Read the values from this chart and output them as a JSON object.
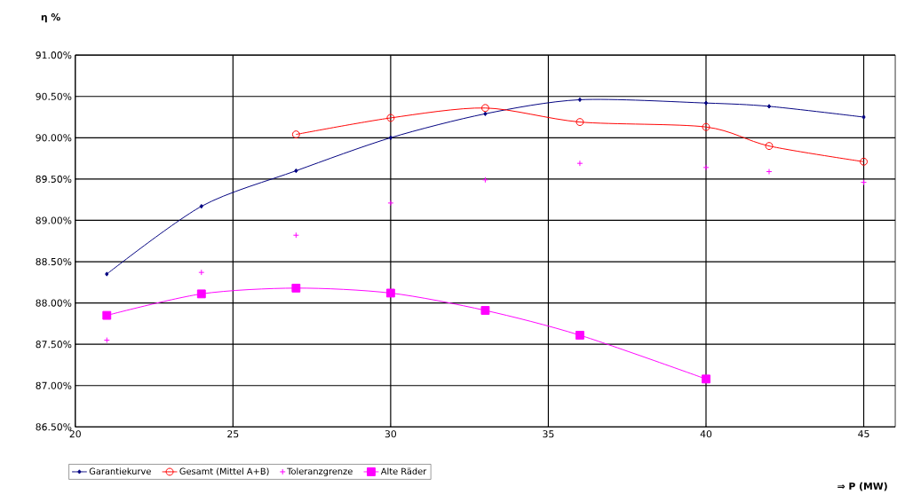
{
  "chart_data": {
    "type": "line",
    "ylabel": "η %",
    "xlabel": "⇒ P (MW)",
    "xlim": [
      20,
      46
    ],
    "ylim": [
      86.5,
      91
    ],
    "xticks": [
      20,
      25,
      30,
      35,
      40,
      45
    ],
    "yticks": [
      {
        "value": 86.5,
        "label": "86.50%"
      },
      {
        "value": 87,
        "label": "87.00%"
      },
      {
        "value": 87.5,
        "label": "87.50%"
      },
      {
        "value": 88,
        "label": "88.00%"
      },
      {
        "value": 88.5,
        "label": "88.50%"
      },
      {
        "value": 89,
        "label": "89.00%"
      },
      {
        "value": 89.5,
        "label": "89.50%"
      },
      {
        "value": 90,
        "label": "90.00%"
      },
      {
        "value": 90.5,
        "label": "90.50%"
      },
      {
        "value": 91,
        "label": "91.00%"
      }
    ],
    "grid": true,
    "legend": "bottom",
    "series": [
      {
        "name": "Garantiekurve",
        "color": "#000080",
        "marker": "diamond",
        "x": [
          21,
          24,
          27,
          30,
          33,
          36,
          40,
          42,
          45
        ],
        "values": [
          88.35,
          89.17,
          89.6,
          90.0,
          90.29,
          90.46,
          90.42,
          90.38,
          90.25
        ]
      },
      {
        "name": "Gesamt (Mittel A+B)",
        "color": "#ff0000",
        "marker": "circle",
        "x": [
          27,
          30,
          33,
          36,
          40,
          42,
          45
        ],
        "values": [
          90.04,
          90.24,
          90.36,
          90.19,
          90.13,
          89.9,
          89.71
        ]
      },
      {
        "name": "Toleranzgrenze",
        "type": "scatter",
        "color": "#ff00ff",
        "marker": "cross",
        "x": [
          21,
          24,
          27,
          30,
          33,
          36,
          40,
          42,
          45
        ],
        "values": [
          87.55,
          88.37,
          88.82,
          89.21,
          89.49,
          89.69,
          89.64,
          89.59,
          89.46
        ]
      },
      {
        "name": "Alte Räder",
        "color": "#ff00ff",
        "marker": "square",
        "x": [
          21,
          24,
          27,
          30,
          33,
          36,
          40
        ],
        "values": [
          87.85,
          88.11,
          88.18,
          88.12,
          87.91,
          87.61,
          87.08
        ]
      }
    ]
  }
}
